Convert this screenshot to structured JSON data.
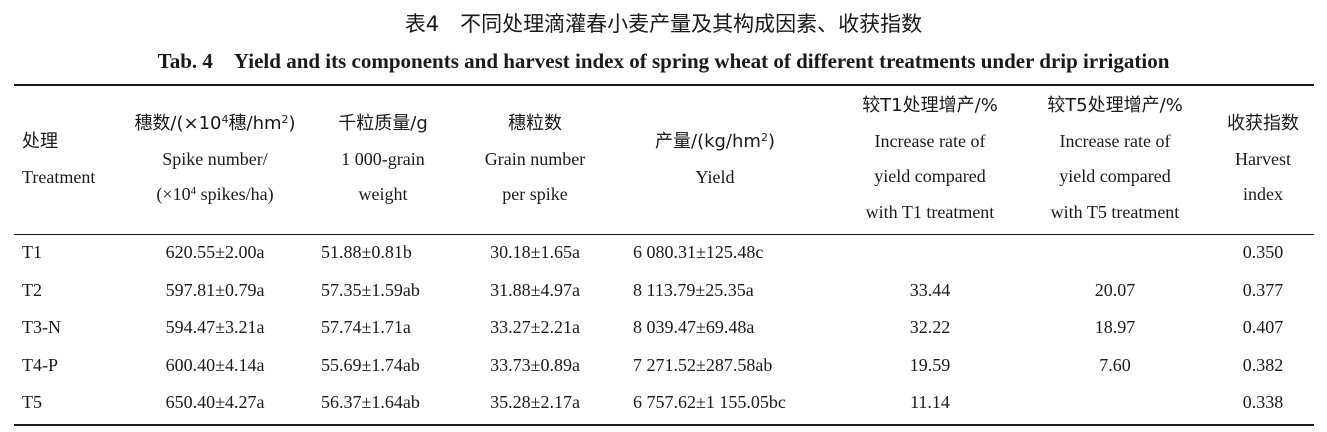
{
  "caption": {
    "cn": "表4　不同处理滴灌春小麦产量及其构成因素、收获指数",
    "en": "Tab. 4　Yield and its components and harvest index of spring wheat of different treatments under drip irrigation"
  },
  "headers": {
    "treatment": {
      "cn": "处理",
      "en": "Treatment"
    },
    "spike": {
      "cn_a": "穗数/(×10",
      "cn_sup": "4",
      "cn_b": "穗/hm",
      "cn_sup2": "2",
      "cn_c": ")",
      "en1": "Spike number/",
      "en2_a": "(×10",
      "en2_sup": "4",
      "en2_b": " spikes/ha)"
    },
    "kgw": {
      "cn": "千粒质量/g",
      "en1": "1 000-grain",
      "en2": "weight"
    },
    "grain": {
      "cn": "穗粒数",
      "en1": "Grain number",
      "en2": "per spike"
    },
    "yield": {
      "cn_a": "产量/(kg/hm",
      "cn_sup": "2",
      "cn_b": ")",
      "en": "Yield"
    },
    "inc_t1": {
      "cn": "较T1处理增产/%",
      "en1": "Increase rate of",
      "en2": "yield compared",
      "en3": "with T1 treatment"
    },
    "inc_t5": {
      "cn": "较T5处理增产/%",
      "en1": "Increase rate of",
      "en2": "yield compared",
      "en3": "with T5 treatment"
    },
    "hi": {
      "cn": "收获指数",
      "en1": "Harvest",
      "en2": "index"
    }
  },
  "rows": [
    {
      "treatment": "T1",
      "spike": "620.55±2.00a",
      "kgw": "51.88±0.81b",
      "grain": "30.18±1.65a",
      "yield": "6 080.31±125.48c",
      "inc_t1": "",
      "inc_t5": "",
      "hi": "0.350"
    },
    {
      "treatment": "T2",
      "spike": "597.81±0.79a",
      "kgw": "57.35±1.59ab",
      "grain": "31.88±4.97a",
      "yield": "8 113.79±25.35a",
      "inc_t1": "33.44",
      "inc_t5": "20.07",
      "hi": "0.377"
    },
    {
      "treatment": "T3-N",
      "spike": "594.47±3.21a",
      "kgw": "57.74±1.71a",
      "grain": "33.27±2.21a",
      "yield": "8 039.47±69.48a",
      "inc_t1": "32.22",
      "inc_t5": "18.97",
      "hi": "0.407"
    },
    {
      "treatment": "T4-P",
      "spike": "600.40±4.14a",
      "kgw": "55.69±1.74ab",
      "grain": "33.73±0.89a",
      "yield": "7 271.52±287.58ab",
      "inc_t1": "19.59",
      "inc_t5": "7.60",
      "hi": "0.382"
    },
    {
      "treatment": "T5",
      "spike": "650.40±4.27a",
      "kgw": "56.37±1.64ab",
      "grain": "35.28±2.17a",
      "yield": "6 757.62±1 155.05bc",
      "inc_t1": "11.14",
      "inc_t5": "",
      "hi": "0.338"
    }
  ]
}
